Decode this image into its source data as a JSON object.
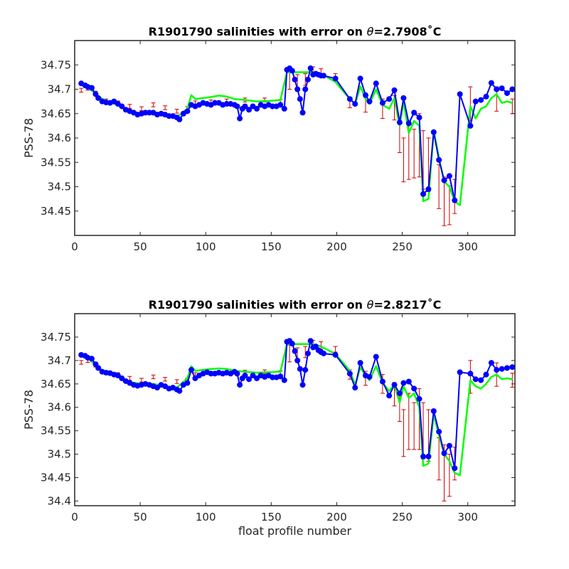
{
  "chart_data": [
    {
      "type": "line",
      "title_prefix": "R1901790 salinities with error on ",
      "title_symbol": "θ",
      "title_suffix": "=2.7908˚C",
      "title": "R1901790 salinities with error on θ=2.7908˚C",
      "ylabel": "PSS-78",
      "xlabel": "",
      "xlim": [
        0,
        336
      ],
      "ylim": [
        34.4,
        34.8
      ],
      "xticks": [
        0,
        50,
        100,
        150,
        200,
        250,
        300
      ],
      "yticks": [
        34.45,
        34.5,
        34.55,
        34.6,
        34.65,
        34.7,
        34.75
      ],
      "colors": {
        "uncalibrated": "#0000ff",
        "calibrated": "#00ff00",
        "error": "#cc0000"
      },
      "series": [
        {
          "role": "uncalibrated",
          "x": [
            5,
            8,
            10,
            13,
            16,
            18,
            21,
            24,
            27,
            30,
            33,
            36,
            39,
            42,
            45,
            48,
            51,
            54,
            57,
            60,
            63,
            66,
            69,
            72,
            75,
            78,
            80,
            83,
            86,
            89,
            92,
            95,
            98,
            101,
            104,
            107,
            110,
            113,
            116,
            119,
            122,
            124,
            126,
            128,
            130,
            133,
            136,
            139,
            142,
            145,
            148,
            151,
            154,
            157,
            160,
            162,
            164,
            166,
            168,
            170,
            172,
            174,
            176,
            178,
            180,
            182,
            184,
            186,
            188,
            190,
            199,
            210,
            214,
            218,
            222,
            225,
            230,
            235,
            240,
            244,
            248,
            251,
            255,
            259,
            263,
            266,
            270,
            274,
            278,
            282,
            286,
            290,
            294,
            302,
            306,
            310,
            314,
            318,
            322,
            326,
            330,
            334
          ],
          "y": [
            34.712,
            34.708,
            34.705,
            34.703,
            34.69,
            34.682,
            34.675,
            34.673,
            34.672,
            34.675,
            34.67,
            34.665,
            34.658,
            34.655,
            34.652,
            34.648,
            34.65,
            34.652,
            34.652,
            34.652,
            34.648,
            34.65,
            34.648,
            34.645,
            34.645,
            34.642,
            34.638,
            34.65,
            34.655,
            34.668,
            34.665,
            34.668,
            34.672,
            34.67,
            34.668,
            34.672,
            34.672,
            34.668,
            34.67,
            34.67,
            34.668,
            34.665,
            34.64,
            34.66,
            34.665,
            34.658,
            34.665,
            34.66,
            34.668,
            34.665,
            34.668,
            34.665,
            34.665,
            34.668,
            34.66,
            34.74,
            34.743,
            34.738,
            34.72,
            34.7,
            34.68,
            34.652,
            34.7,
            34.72,
            34.743,
            34.73,
            34.732,
            34.73,
            34.728,
            34.728,
            34.722,
            34.68,
            34.67,
            34.722,
            34.688,
            34.675,
            34.712,
            34.672,
            34.68,
            34.698,
            34.632,
            34.682,
            34.63,
            34.652,
            34.642,
            34.485,
            34.495,
            34.612,
            34.555,
            34.513,
            34.522,
            34.472,
            34.69,
            34.625,
            34.675,
            34.678,
            34.685,
            34.713,
            34.7,
            34.702,
            34.692,
            34.7
          ]
        },
        {
          "role": "calibrated",
          "x": [
            5,
            10,
            16,
            24,
            33,
            42,
            51,
            60,
            69,
            78,
            86,
            89,
            92,
            98,
            104,
            110,
            116,
            122,
            130,
            139,
            148,
            157,
            162,
            166,
            172,
            178,
            182,
            188,
            199,
            210,
            214,
            218,
            222,
            225,
            230,
            235,
            240,
            244,
            248,
            251,
            255,
            259,
            263,
            266,
            270,
            274,
            278,
            282,
            286,
            290,
            294,
            302,
            306,
            310,
            314,
            318,
            322,
            326,
            330,
            334
          ],
          "y": [
            34.71,
            34.705,
            34.69,
            34.675,
            34.668,
            34.656,
            34.65,
            34.651,
            34.647,
            34.643,
            34.66,
            34.688,
            34.68,
            34.682,
            34.684,
            34.687,
            34.685,
            34.68,
            34.678,
            34.675,
            34.676,
            34.678,
            34.735,
            34.735,
            34.735,
            34.735,
            34.735,
            34.732,
            34.715,
            34.68,
            34.67,
            34.706,
            34.68,
            34.67,
            34.7,
            34.668,
            34.66,
            34.682,
            34.625,
            34.675,
            34.61,
            34.635,
            34.625,
            34.47,
            34.475,
            34.615,
            34.56,
            34.51,
            34.5,
            34.47,
            34.462,
            34.665,
            34.64,
            34.66,
            34.665,
            34.682,
            34.69,
            34.672,
            34.675,
            34.672
          ]
        },
        {
          "role": "error",
          "x": [
            5,
            10,
            16,
            24,
            33,
            42,
            51,
            60,
            69,
            78,
            86,
            92,
            104,
            116,
            130,
            145,
            157,
            164,
            170,
            176,
            182,
            188,
            199,
            210,
            222,
            235,
            244,
            248,
            251,
            255,
            259,
            263,
            266,
            270,
            278,
            282,
            286,
            290,
            302,
            322,
            334
          ],
          "y": [
            34.698,
            34.702,
            34.692,
            34.676,
            34.672,
            34.665,
            34.66,
            34.668,
            34.662,
            34.655,
            34.66,
            34.672,
            34.674,
            34.676,
            34.678,
            34.678,
            34.675,
            34.718,
            34.715,
            34.72,
            34.738,
            34.734,
            34.726,
            34.672,
            34.668,
            34.66,
            34.662,
            34.6,
            34.555,
            34.575,
            34.568,
            34.585,
            34.555,
            34.545,
            34.5,
            34.47,
            34.462,
            34.48,
            34.67,
            34.68,
            34.665
          ],
          "err": [
            0.004,
            0.004,
            0.004,
            0.004,
            0.004,
            0.004,
            0.004,
            0.004,
            0.004,
            0.004,
            0.004,
            0.004,
            0.004,
            0.004,
            0.004,
            0.004,
            0.004,
            0.018,
            0.015,
            0.012,
            0.008,
            0.008,
            0.006,
            0.01,
            0.015,
            0.02,
            0.025,
            0.03,
            0.045,
            0.06,
            0.05,
            0.065,
            0.06,
            0.055,
            0.045,
            0.05,
            0.04,
            0.035,
            0.035,
            0.025,
            0.015
          ]
        }
      ]
    },
    {
      "type": "line",
      "title_prefix": "R1901790 salinities with error on ",
      "title_symbol": "θ",
      "title_suffix": "=2.8217˚C",
      "title": "R1901790 salinities with error on θ=2.8217˚C",
      "ylabel": "PSS-78",
      "xlabel": "float profile number",
      "xlim": [
        0,
        336
      ],
      "ylim": [
        34.39,
        34.8
      ],
      "xticks": [
        0,
        50,
        100,
        150,
        200,
        250,
        300
      ],
      "yticks": [
        34.4,
        34.45,
        34.5,
        34.55,
        34.6,
        34.65,
        34.7,
        34.75
      ],
      "colors": {
        "uncalibrated": "#0000ff",
        "calibrated": "#00ff00",
        "error": "#cc0000"
      },
      "series": [
        {
          "role": "uncalibrated",
          "x": [
            5,
            8,
            10,
            13,
            16,
            18,
            21,
            24,
            27,
            30,
            33,
            36,
            39,
            42,
            45,
            48,
            51,
            54,
            57,
            60,
            63,
            66,
            69,
            72,
            75,
            78,
            80,
            83,
            86,
            89,
            92,
            95,
            98,
            101,
            104,
            107,
            110,
            113,
            116,
            119,
            122,
            124,
            126,
            128,
            130,
            133,
            136,
            139,
            142,
            145,
            148,
            151,
            154,
            157,
            160,
            162,
            164,
            166,
            168,
            170,
            172,
            174,
            176,
            178,
            180,
            182,
            184,
            186,
            188,
            190,
            199,
            210,
            214,
            218,
            222,
            225,
            230,
            235,
            240,
            244,
            248,
            251,
            255,
            259,
            263,
            266,
            270,
            274,
            278,
            282,
            286,
            290,
            294,
            302,
            306,
            310,
            314,
            318,
            322,
            326,
            330,
            334
          ],
          "y": [
            34.712,
            34.71,
            34.706,
            34.704,
            34.692,
            34.684,
            34.676,
            34.674,
            34.673,
            34.67,
            34.668,
            34.662,
            34.656,
            34.652,
            34.648,
            34.646,
            34.648,
            34.65,
            34.648,
            34.645,
            34.642,
            34.648,
            34.645,
            34.64,
            34.642,
            34.638,
            34.635,
            34.648,
            34.652,
            34.68,
            34.662,
            34.668,
            34.672,
            34.675,
            34.672,
            34.672,
            34.674,
            34.672,
            34.674,
            34.672,
            34.676,
            34.672,
            34.648,
            34.662,
            34.668,
            34.66,
            34.668,
            34.662,
            34.668,
            34.665,
            34.668,
            34.664,
            34.664,
            34.666,
            34.658,
            34.74,
            34.742,
            34.736,
            34.72,
            34.7,
            34.682,
            34.648,
            34.68,
            34.715,
            34.742,
            34.728,
            34.73,
            34.722,
            34.718,
            34.715,
            34.712,
            34.672,
            34.642,
            34.695,
            34.668,
            34.665,
            34.708,
            34.655,
            34.625,
            34.648,
            34.63,
            34.652,
            34.655,
            34.64,
            34.618,
            34.495,
            34.495,
            34.592,
            34.548,
            34.502,
            34.518,
            34.47,
            34.675,
            34.672,
            34.66,
            34.658,
            34.67,
            34.695,
            34.68,
            34.682,
            34.684,
            34.686
          ]
        },
        {
          "role": "calibrated",
          "x": [
            5,
            10,
            16,
            24,
            33,
            42,
            51,
            60,
            69,
            78,
            86,
            89,
            92,
            98,
            104,
            110,
            116,
            122,
            130,
            139,
            148,
            157,
            162,
            166,
            172,
            178,
            182,
            188,
            199,
            210,
            214,
            218,
            222,
            225,
            230,
            235,
            240,
            244,
            248,
            251,
            255,
            259,
            263,
            266,
            270,
            274,
            278,
            282,
            286,
            290,
            294,
            302,
            306,
            310,
            314,
            318,
            322,
            326,
            330,
            334
          ],
          "y": [
            34.708,
            34.705,
            34.69,
            34.673,
            34.666,
            34.654,
            34.65,
            34.65,
            34.645,
            34.642,
            34.662,
            34.688,
            34.678,
            34.68,
            34.682,
            34.683,
            34.682,
            34.678,
            34.676,
            34.674,
            34.675,
            34.676,
            34.735,
            34.735,
            34.735,
            34.735,
            34.735,
            34.73,
            34.714,
            34.678,
            34.648,
            34.685,
            34.668,
            34.658,
            34.688,
            34.652,
            34.635,
            34.648,
            34.61,
            34.645,
            34.62,
            34.63,
            34.6,
            34.475,
            34.48,
            34.585,
            34.54,
            34.5,
            34.485,
            34.46,
            34.455,
            34.658,
            34.645,
            34.64,
            34.65,
            34.665,
            34.67,
            34.66,
            34.662,
            34.66
          ]
        },
        {
          "role": "error",
          "x": [
            5,
            10,
            16,
            24,
            33,
            42,
            51,
            60,
            69,
            78,
            86,
            92,
            104,
            116,
            130,
            145,
            157,
            164,
            170,
            176,
            182,
            188,
            199,
            210,
            222,
            235,
            244,
            248,
            251,
            255,
            259,
            263,
            266,
            270,
            278,
            282,
            286,
            290,
            302,
            322,
            334
          ],
          "y": [
            34.696,
            34.7,
            34.69,
            34.674,
            34.67,
            34.662,
            34.658,
            34.665,
            34.66,
            34.655,
            34.658,
            34.67,
            34.672,
            34.674,
            34.675,
            34.676,
            34.674,
            34.715,
            34.712,
            34.718,
            34.735,
            34.732,
            34.724,
            34.67,
            34.662,
            34.65,
            34.628,
            34.6,
            34.545,
            34.57,
            34.56,
            34.575,
            34.55,
            34.54,
            34.49,
            34.46,
            34.455,
            34.48,
            34.665,
            34.67,
            34.658
          ],
          "err": [
            0.004,
            0.004,
            0.004,
            0.004,
            0.004,
            0.004,
            0.004,
            0.004,
            0.004,
            0.004,
            0.004,
            0.004,
            0.004,
            0.004,
            0.004,
            0.004,
            0.004,
            0.018,
            0.015,
            0.012,
            0.008,
            0.008,
            0.006,
            0.01,
            0.015,
            0.02,
            0.025,
            0.03,
            0.05,
            0.06,
            0.05,
            0.065,
            0.06,
            0.055,
            0.045,
            0.06,
            0.045,
            0.035,
            0.035,
            0.025,
            0.015
          ]
        }
      ]
    }
  ]
}
